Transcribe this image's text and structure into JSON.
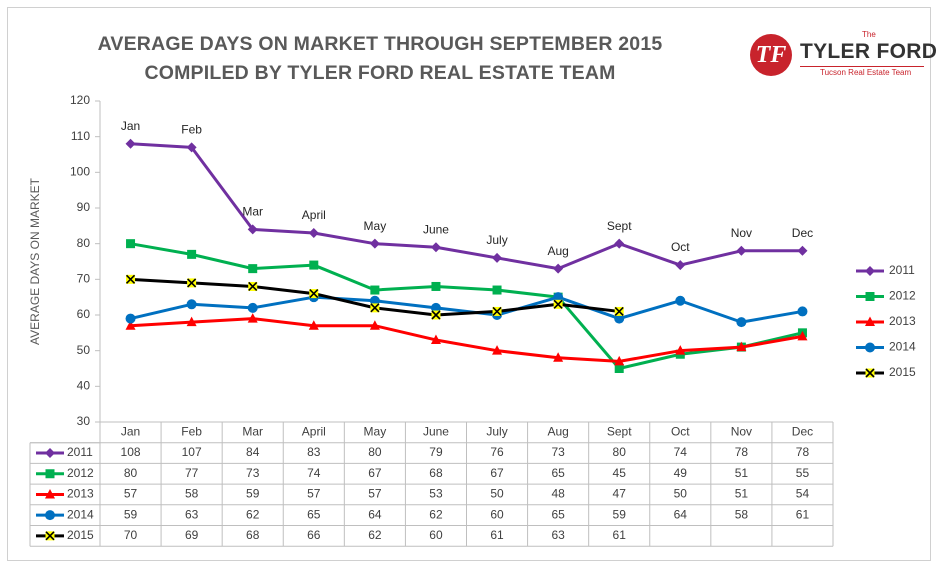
{
  "title": {
    "line1": "AVERAGE DAYS ON MARKET THROUGH SEPTEMBER 2015",
    "line2": "COMPILED BY TYLER FORD REAL ESTATE TEAM"
  },
  "logo": {
    "the": "The",
    "name": "TYLER FORD",
    "tagline": "Tucson Real Estate Team",
    "monogram": "TF"
  },
  "chart_data": {
    "type": "line",
    "ylabel": "AVERAGE DAYS ON MARKET",
    "ylim": [
      30,
      120
    ],
    "yticks": [
      30,
      40,
      50,
      60,
      70,
      80,
      90,
      100,
      110,
      120
    ],
    "categories": [
      "Jan",
      "Feb",
      "Mar",
      "April",
      "May",
      "June",
      "July",
      "Aug",
      "Sept",
      "Oct",
      "Nov",
      "Dec"
    ],
    "point_labels_series": "2011",
    "legend_position": "right",
    "grid": false,
    "data_table": true,
    "series": [
      {
        "name": "2011",
        "color": "#7030a0",
        "marker": "diamond",
        "values": [
          108,
          107,
          84,
          83,
          80,
          79,
          76,
          73,
          80,
          74,
          78,
          78
        ]
      },
      {
        "name": "2012",
        "color": "#00b050",
        "marker": "square",
        "values": [
          80,
          77,
          73,
          74,
          67,
          68,
          67,
          65,
          45,
          49,
          51,
          55
        ]
      },
      {
        "name": "2013",
        "color": "#ff0000",
        "marker": "triangle",
        "values": [
          57,
          58,
          59,
          57,
          57,
          53,
          50,
          48,
          47,
          50,
          51,
          54
        ]
      },
      {
        "name": "2014",
        "color": "#0070c0",
        "marker": "circle",
        "values": [
          59,
          63,
          62,
          65,
          64,
          62,
          60,
          65,
          59,
          64,
          58,
          61
        ]
      },
      {
        "name": "2015",
        "color": "#000000",
        "marker": "x-yellow",
        "values": [
          70,
          69,
          68,
          66,
          62,
          60,
          61,
          63,
          61,
          null,
          null,
          null
        ]
      }
    ]
  }
}
